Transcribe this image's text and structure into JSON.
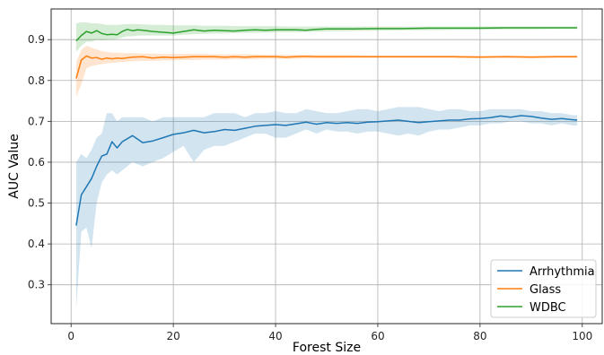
{
  "chart_data": {
    "type": "line",
    "title": "",
    "xlabel": "Forest Size",
    "ylabel": "AUC Value",
    "xlim": [
      -3.9,
      103.9
    ],
    "ylim": [
      0.205,
      0.975
    ],
    "xticks": [
      0,
      20,
      40,
      60,
      80,
      100
    ],
    "yticks": [
      0.3,
      0.4,
      0.5,
      0.6,
      0.7,
      0.8,
      0.9
    ],
    "grid": true,
    "legend_position": "lower-right",
    "series": [
      {
        "name": "Arrhythmia",
        "color": "#1f77b4",
        "x": [
          1,
          2,
          3,
          4,
          5,
          6,
          7,
          8,
          9,
          10,
          12,
          14,
          16,
          18,
          20,
          22,
          24,
          26,
          28,
          30,
          32,
          34,
          36,
          38,
          40,
          42,
          44,
          46,
          48,
          50,
          52,
          54,
          56,
          58,
          60,
          62,
          64,
          66,
          68,
          70,
          72,
          74,
          76,
          78,
          80,
          82,
          84,
          86,
          88,
          90,
          92,
          94,
          96,
          98,
          99
        ],
        "y": [
          0.445,
          0.52,
          0.54,
          0.56,
          0.59,
          0.615,
          0.62,
          0.65,
          0.635,
          0.65,
          0.665,
          0.648,
          0.652,
          0.66,
          0.668,
          0.672,
          0.678,
          0.672,
          0.675,
          0.68,
          0.678,
          0.683,
          0.688,
          0.69,
          0.692,
          0.69,
          0.694,
          0.698,
          0.693,
          0.697,
          0.695,
          0.697,
          0.695,
          0.698,
          0.699,
          0.701,
          0.703,
          0.7,
          0.697,
          0.699,
          0.701,
          0.703,
          0.703,
          0.706,
          0.707,
          0.709,
          0.713,
          0.71,
          0.714,
          0.712,
          0.708,
          0.705,
          0.707,
          0.704,
          0.703
        ],
        "lower": [
          0.24,
          0.43,
          0.44,
          0.39,
          0.5,
          0.55,
          0.57,
          0.58,
          0.57,
          0.58,
          0.6,
          0.59,
          0.6,
          0.61,
          0.625,
          0.64,
          0.6,
          0.63,
          0.64,
          0.64,
          0.65,
          0.66,
          0.67,
          0.67,
          0.66,
          0.66,
          0.67,
          0.68,
          0.67,
          0.68,
          0.675,
          0.675,
          0.67,
          0.675,
          0.675,
          0.67,
          0.665,
          0.67,
          0.665,
          0.675,
          0.68,
          0.68,
          0.685,
          0.69,
          0.69,
          0.695,
          0.695,
          0.7,
          0.7,
          0.695,
          0.695,
          0.69,
          0.695,
          0.69,
          0.69
        ],
        "upper": [
          0.6,
          0.62,
          0.61,
          0.63,
          0.66,
          0.67,
          0.72,
          0.72,
          0.7,
          0.71,
          0.71,
          0.71,
          0.7,
          0.71,
          0.71,
          0.71,
          0.71,
          0.71,
          0.72,
          0.72,
          0.72,
          0.71,
          0.72,
          0.72,
          0.725,
          0.72,
          0.72,
          0.73,
          0.725,
          0.72,
          0.72,
          0.725,
          0.73,
          0.73,
          0.725,
          0.73,
          0.735,
          0.735,
          0.735,
          0.73,
          0.725,
          0.73,
          0.73,
          0.725,
          0.725,
          0.73,
          0.73,
          0.73,
          0.73,
          0.725,
          0.725,
          0.72,
          0.72,
          0.715,
          0.715
        ]
      },
      {
        "name": "Glass",
        "color": "#ff7f0e",
        "x": [
          1,
          2,
          3,
          4,
          5,
          6,
          7,
          8,
          9,
          10,
          12,
          14,
          16,
          18,
          20,
          22,
          24,
          26,
          28,
          30,
          32,
          34,
          36,
          38,
          40,
          42,
          44,
          46,
          48,
          50,
          55,
          60,
          65,
          70,
          75,
          80,
          85,
          90,
          95,
          99
        ],
        "y": [
          0.805,
          0.85,
          0.86,
          0.855,
          0.856,
          0.852,
          0.855,
          0.853,
          0.855,
          0.854,
          0.857,
          0.858,
          0.855,
          0.857,
          0.856,
          0.857,
          0.858,
          0.858,
          0.858,
          0.857,
          0.858,
          0.857,
          0.858,
          0.858,
          0.858,
          0.857,
          0.858,
          0.859,
          0.858,
          0.858,
          0.858,
          0.858,
          0.858,
          0.858,
          0.858,
          0.857,
          0.858,
          0.857,
          0.858,
          0.858
        ],
        "lower": [
          0.76,
          0.79,
          0.83,
          0.835,
          0.838,
          0.84,
          0.842,
          0.843,
          0.844,
          0.845,
          0.847,
          0.848,
          0.848,
          0.849,
          0.849,
          0.85,
          0.85,
          0.851,
          0.851,
          0.851,
          0.852,
          0.852,
          0.852,
          0.853,
          0.853,
          0.853,
          0.853,
          0.854,
          0.854,
          0.854,
          0.855,
          0.855,
          0.855,
          0.855,
          0.855,
          0.855,
          0.855,
          0.855,
          0.855,
          0.855
        ],
        "upper": [
          0.845,
          0.875,
          0.885,
          0.88,
          0.876,
          0.872,
          0.87,
          0.868,
          0.868,
          0.867,
          0.867,
          0.866,
          0.866,
          0.865,
          0.865,
          0.865,
          0.865,
          0.865,
          0.864,
          0.864,
          0.864,
          0.864,
          0.864,
          0.863,
          0.863,
          0.863,
          0.863,
          0.863,
          0.862,
          0.862,
          0.862,
          0.861,
          0.861,
          0.861,
          0.861,
          0.861,
          0.861,
          0.861,
          0.861,
          0.861
        ]
      },
      {
        "name": "WDBC",
        "color": "#2ca02c",
        "x": [
          1,
          2,
          3,
          4,
          5,
          6,
          7,
          8,
          9,
          10,
          11,
          12,
          13,
          14,
          16,
          18,
          20,
          22,
          24,
          26,
          28,
          30,
          32,
          34,
          36,
          38,
          40,
          42,
          44,
          46,
          48,
          50,
          55,
          60,
          65,
          70,
          75,
          80,
          85,
          90,
          95,
          99
        ],
        "y": [
          0.897,
          0.91,
          0.92,
          0.916,
          0.922,
          0.915,
          0.912,
          0.913,
          0.912,
          0.92,
          0.925,
          0.922,
          0.924,
          0.923,
          0.92,
          0.918,
          0.916,
          0.92,
          0.924,
          0.921,
          0.923,
          0.922,
          0.921,
          0.923,
          0.924,
          0.923,
          0.924,
          0.924,
          0.924,
          0.923,
          0.925,
          0.926,
          0.926,
          0.927,
          0.927,
          0.928,
          0.928,
          0.928,
          0.929,
          0.929,
          0.929,
          0.929
        ],
        "lower": [
          0.87,
          0.885,
          0.895,
          0.895,
          0.9,
          0.898,
          0.9,
          0.9,
          0.902,
          0.905,
          0.908,
          0.908,
          0.91,
          0.91,
          0.91,
          0.91,
          0.91,
          0.912,
          0.913,
          0.914,
          0.915,
          0.915,
          0.916,
          0.916,
          0.917,
          0.917,
          0.918,
          0.918,
          0.918,
          0.919,
          0.919,
          0.92,
          0.921,
          0.922,
          0.923,
          0.923,
          0.924,
          0.924,
          0.925,
          0.925,
          0.926,
          0.926
        ],
        "upper": [
          0.94,
          0.942,
          0.942,
          0.94,
          0.94,
          0.938,
          0.936,
          0.936,
          0.936,
          0.937,
          0.938,
          0.938,
          0.938,
          0.937,
          0.936,
          0.936,
          0.935,
          0.935,
          0.935,
          0.934,
          0.934,
          0.934,
          0.933,
          0.933,
          0.933,
          0.933,
          0.933,
          0.932,
          0.932,
          0.932,
          0.932,
          0.932,
          0.932,
          0.932,
          0.932,
          0.932,
          0.932,
          0.932,
          0.932,
          0.932,
          0.932,
          0.932
        ]
      }
    ]
  }
}
